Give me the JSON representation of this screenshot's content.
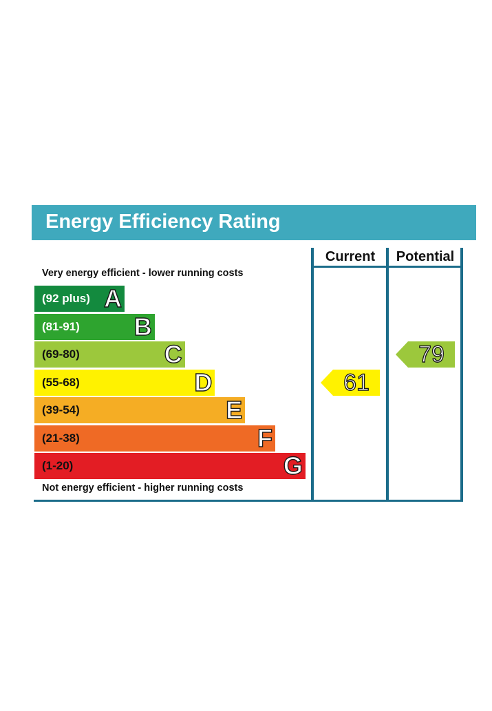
{
  "header": {
    "title": "Energy Efficiency Rating"
  },
  "columns": {
    "current_label": "Current",
    "potential_label": "Potential"
  },
  "notes": {
    "top": "Very energy efficient - lower running costs",
    "bottom": "Not energy efficient - higher running costs"
  },
  "chart_data": {
    "type": "bar",
    "title": "Energy Efficiency Rating",
    "bands": [
      {
        "letter": "A",
        "range": "(92 plus)",
        "min": 92,
        "max": 100,
        "color": "#138a3e",
        "text_color": "#ffffff"
      },
      {
        "letter": "B",
        "range": "(81-91)",
        "min": 81,
        "max": 91,
        "color": "#2ea42f",
        "text_color": "#ffffff"
      },
      {
        "letter": "C",
        "range": "(69-80)",
        "min": 69,
        "max": 80,
        "color": "#9cc83c",
        "text_color": "#111111"
      },
      {
        "letter": "D",
        "range": "(55-68)",
        "min": 55,
        "max": 68,
        "color": "#fff200",
        "text_color": "#111111"
      },
      {
        "letter": "E",
        "range": "(39-54)",
        "min": 39,
        "max": 54,
        "color": "#f5ad24",
        "text_color": "#111111"
      },
      {
        "letter": "F",
        "range": "(21-38)",
        "min": 21,
        "max": 38,
        "color": "#ef6a25",
        "text_color": "#111111"
      },
      {
        "letter": "G",
        "range": "(1-20)",
        "min": 1,
        "max": 20,
        "color": "#e31d24",
        "text_color": "#111111"
      }
    ],
    "current": {
      "value": 61,
      "band": "D",
      "color": "#fff200"
    },
    "potential": {
      "value": 79,
      "band": "C",
      "color": "#9cc83c"
    }
  }
}
